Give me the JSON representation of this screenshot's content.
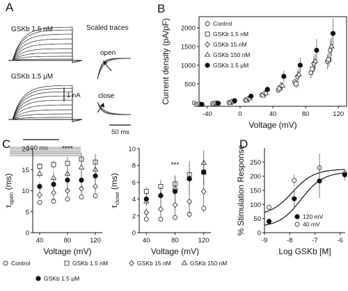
{
  "panel_letters": [
    "A",
    "B",
    "C",
    "D"
  ],
  "panel_a": {
    "label_nm": "GSKb 1.5 nM",
    "label_um": "GSKb 1.5 μM",
    "scale_current": "1 nA",
    "scale_time_left": "100 ms",
    "scaled_title": "Scaled traces",
    "open_label": "open",
    "close_label": "close",
    "scale_time_right": "50 ms"
  },
  "chart_data": [
    {
      "type": "scatter",
      "panel": "B",
      "xlabel": "Voltage (mV)",
      "ylabel": "Current density (pA/pF)",
      "xlim": [
        -50,
        130
      ],
      "ylim": [
        -100,
        2300
      ],
      "xticks": [
        -40,
        0,
        40,
        80,
        120
      ],
      "yticks": [
        0,
        500,
        1000,
        1500,
        2000
      ],
      "legend_position": "top-left",
      "x": [
        -50,
        -30,
        -10,
        10,
        30,
        50,
        70,
        90,
        110
      ],
      "series": [
        {
          "name": "Control",
          "marker": "circle-open",
          "values": [
            -50,
            -30,
            0,
            60,
            200,
            330,
            550,
            800,
            1100
          ],
          "err": [
            10,
            10,
            15,
            40,
            60,
            80,
            100,
            150,
            200
          ]
        },
        {
          "name": "GSKb 1.5 nM",
          "marker": "square-open",
          "values": [
            -50,
            -30,
            0,
            70,
            200,
            380,
            500,
            900,
            1150
          ],
          "err": [
            10,
            10,
            15,
            40,
            60,
            90,
            120,
            180,
            200
          ]
        },
        {
          "name": "GSKb 15 nM",
          "marker": "diamond-open",
          "values": [
            -45,
            -25,
            20,
            100,
            250,
            450,
            700,
            1050,
            1400
          ],
          "err": [
            10,
            10,
            20,
            40,
            70,
            100,
            150,
            200,
            300
          ]
        },
        {
          "name": "GSKb 150 nM",
          "marker": "triangle-open",
          "values": [
            -50,
            -20,
            20,
            110,
            250,
            450,
            750,
            1100,
            1500
          ],
          "err": [
            10,
            10,
            20,
            40,
            70,
            100,
            150,
            200,
            250
          ]
        },
        {
          "name": "GSKb 1.5 μM",
          "marker": "circle-filled",
          "values": [
            -50,
            -20,
            50,
            170,
            350,
            700,
            1000,
            1400,
            1850
          ],
          "err": [
            10,
            10,
            30,
            60,
            90,
            150,
            200,
            300,
            400
          ]
        }
      ]
    },
    {
      "type": "scatter",
      "panel": "C-open",
      "xlabel": "Voltage (mV)",
      "ylabel": "τopen (ms)",
      "ylabel_main": "τ",
      "ylabel_sub": "open",
      "ylabel_unit": " (ms)",
      "xlim": [
        30,
        130
      ],
      "ylim": [
        0,
        20
      ],
      "xticks": [
        40,
        80,
        120
      ],
      "yticks": [
        0,
        5,
        10,
        15,
        20
      ],
      "annotation": "****",
      "annotation_x": 80,
      "annotation_y": 19.5,
      "x": [
        40,
        60,
        80,
        100,
        120
      ],
      "series": [
        {
          "name": "Control",
          "marker": "circle-open",
          "values": [
            7.2,
            7.5,
            8.0,
            8.5,
            8.8
          ],
          "err": [
            0.3,
            0.3,
            0.5,
            0.4,
            0.5
          ]
        },
        {
          "name": "GSKb 1.5 nM",
          "marker": "square-open",
          "values": [
            15.8,
            16.2,
            16.5,
            17.5,
            16.8
          ],
          "err": [
            0.8,
            1.0,
            1.5,
            1.5,
            2.0
          ]
        },
        {
          "name": "GSKb 15 nM",
          "marker": "diamond-open",
          "values": [
            9.0,
            9.5,
            10.0,
            10.5,
            11.0
          ],
          "err": [
            1.0,
            2.0,
            1.5,
            1.5,
            1.5
          ]
        },
        {
          "name": "GSKb 150 nM",
          "marker": "triangle-open",
          "values": [
            14.0,
            13.0,
            14.0,
            15.5,
            15.0
          ],
          "err": [
            1.0,
            1.5,
            2.0,
            2.5,
            2.5
          ]
        },
        {
          "name": "GSKb 1.5 μM",
          "marker": "circle-filled",
          "values": [
            11.0,
            11.5,
            12.5,
            12.5,
            13.5
          ],
          "err": [
            1.0,
            1.5,
            2.5,
            2.0,
            2.0
          ]
        }
      ]
    },
    {
      "type": "scatter",
      "panel": "C-close",
      "xlabel": "Voltage (mV)",
      "ylabel": "τclose (ms)",
      "ylabel_main": "τ",
      "ylabel_sub": "close",
      "ylabel_unit": " (ms)",
      "xlim": [
        30,
        130
      ],
      "ylim": [
        0,
        10
      ],
      "xticks": [
        40,
        80,
        120
      ],
      "yticks": [
        0,
        2,
        4,
        6,
        8,
        10
      ],
      "annotation": "***",
      "annotation_x": 80,
      "annotation_y": 7.8,
      "x": [
        40,
        60,
        80,
        100,
        120
      ],
      "series": [
        {
          "name": "Control",
          "marker": "circle-open",
          "values": [
            1.6,
            1.6,
            1.8,
            2.2,
            2.9
          ],
          "err": [
            0.2,
            0.3,
            0.3,
            0.4,
            0.5
          ]
        },
        {
          "name": "GSKb 1.5 nM",
          "marker": "square-open",
          "values": [
            4.9,
            5.5,
            5.8,
            6.9,
            7.2
          ],
          "err": [
            0.5,
            0.8,
            1.0,
            1.2,
            1.5
          ]
        },
        {
          "name": "GSKb 15 nM",
          "marker": "diamond-open",
          "values": [
            2.4,
            2.8,
            3.3,
            3.7,
            4.9
          ],
          "err": [
            0.5,
            1.0,
            1.2,
            1.5,
            1.5
          ]
        },
        {
          "name": "GSKb 150 nM",
          "marker": "triangle-open",
          "values": [
            3.7,
            4.5,
            5.3,
            6.5,
            8.3
          ],
          "err": [
            0.5,
            1.0,
            1.5,
            2.0,
            1.5
          ]
        },
        {
          "name": "GSKb 1.5 μM",
          "marker": "circle-filled",
          "values": [
            4.0,
            4.4,
            4.9,
            6.4,
            7.2
          ],
          "err": [
            0.8,
            1.0,
            1.2,
            1.5,
            1.5
          ]
        }
      ]
    },
    {
      "type": "scatter",
      "panel": "D",
      "xlabel": "Log  GSKb [M]",
      "ylabel": "% Stimulation Response",
      "xlim": [
        -9,
        -5.8
      ],
      "ylim": [
        0,
        300
      ],
      "xticks": [
        -9,
        -8,
        -7,
        -6
      ],
      "yticks": [
        0,
        50,
        100,
        150,
        200,
        250
      ],
      "legend_position": "bottom-right",
      "x": [
        -8.82,
        -7.82,
        -6.82,
        -5.82
      ],
      "series": [
        {
          "name": "40 mV",
          "marker": "circle-open",
          "values": [
            90,
            185,
            230,
            210
          ],
          "err": [
            5,
            20,
            50,
            15
          ]
        },
        {
          "name": "120 mV",
          "marker": "circle-filled",
          "values": [
            40,
            120,
            183,
            205
          ],
          "err": [
            10,
            30,
            60,
            20
          ]
        }
      ],
      "fits": [
        {
          "series": "40 mV",
          "bottom": 60,
          "top": 225,
          "logec50": -7.9,
          "hill": 1.0
        },
        {
          "series": "120 mV",
          "bottom": 20,
          "top": 215,
          "logec50": -7.55,
          "hill": 1.0
        }
      ]
    }
  ],
  "c_legend": [
    "Control",
    "GSKb 1.5 nM",
    "GSKb 15 nM",
    "GSKb 150 nM",
    "GSKb 1.5 μM"
  ]
}
